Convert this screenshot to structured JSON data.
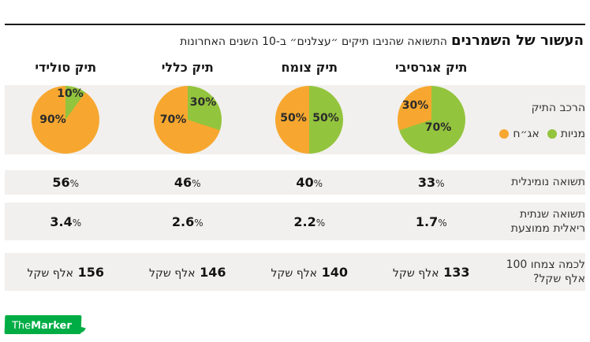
{
  "title": {
    "bold": "העשור של השמרנים",
    "rest": "התשואה שהניבו תיקים ״עצלנים״ ב-10 השנים האחרונות"
  },
  "legend": {
    "row_label": "הרכב התיק",
    "stocks": {
      "label": "מניות",
      "color": "#93C43D"
    },
    "bonds": {
      "label": "אג״ח",
      "color": "#F7A72F"
    }
  },
  "units": {
    "percent": "%",
    "thousand_shekel": "אלף שקל"
  },
  "rows": {
    "nominal": {
      "label": "תשואה נומינלית"
    },
    "real": {
      "label_line1": "תשואה שנתית",
      "label_line2": "ריאלית ממוצעת"
    },
    "grown": {
      "label_line1": "לכמה צמחו 100",
      "label_line2": "אלף שקל?"
    }
  },
  "columns": [
    {
      "header": "תיק אגרסיבי",
      "pie": {
        "stocks_pct": 70,
        "bonds_pct": 30,
        "stocks_label": "70%",
        "bonds_label": "30%"
      },
      "nominal": "33",
      "real": "1.7",
      "grown": "133"
    },
    {
      "header": "תיק צומח",
      "pie": {
        "stocks_pct": 50,
        "bonds_pct": 50,
        "stocks_label": "50%",
        "bonds_label": "50%"
      },
      "nominal": "40",
      "real": "2.2",
      "grown": "140"
    },
    {
      "header": "תיק כללי",
      "pie": {
        "stocks_pct": 30,
        "bonds_pct": 70,
        "stocks_label": "30%",
        "bonds_label": "70%"
      },
      "nominal": "46",
      "real": "2.6",
      "grown": "146"
    },
    {
      "header": "תיק סולידי",
      "pie": {
        "stocks_pct": 10,
        "bonds_pct": 90,
        "stocks_label": "10%",
        "bonds_label": "90%"
      },
      "nominal": "56",
      "real": "3.4",
      "grown": "156"
    }
  ],
  "logo": {
    "the": "The",
    "marker": "Marker",
    "color": "#00AD45"
  },
  "chart_data": [
    {
      "type": "pie",
      "title": "תיק אגרסיבי",
      "labels": [
        "מניות",
        "אג״ח"
      ],
      "values": [
        70,
        30
      ],
      "colors": [
        "#93C43D",
        "#F7A72F"
      ],
      "legend_position": "right"
    },
    {
      "type": "pie",
      "title": "תיק צומח",
      "labels": [
        "מניות",
        "אג״ח"
      ],
      "values": [
        50,
        50
      ],
      "colors": [
        "#93C43D",
        "#F7A72F"
      ],
      "legend_position": "right"
    },
    {
      "type": "pie",
      "title": "תיק כללי",
      "labels": [
        "מניות",
        "אג״ח"
      ],
      "values": [
        30,
        70
      ],
      "colors": [
        "#93C43D",
        "#F7A72F"
      ],
      "legend_position": "right"
    },
    {
      "type": "pie",
      "title": "תיק סולידי",
      "labels": [
        "מניות",
        "אג״ח"
      ],
      "values": [
        10,
        90
      ],
      "colors": [
        "#93C43D",
        "#F7A72F"
      ],
      "legend_position": "right"
    },
    {
      "type": "table",
      "title": "העשור של השמרנים — התשואה שהניבו תיקים ״עצלנים״ ב-10 השנים האחרונות",
      "columns": [
        "תיק אגרסיבי",
        "תיק צומח",
        "תיק כללי",
        "תיק סולידי"
      ],
      "rows": [
        {
          "label": "תשואה נומינלית",
          "values": [
            "33%",
            "40%",
            "46%",
            "56%"
          ]
        },
        {
          "label": "תשואה שנתית ריאלית ממוצעת",
          "values": [
            "1.7%",
            "2.2%",
            "2.6%",
            "3.4%"
          ]
        },
        {
          "label": "לכמה צמחו 100 אלף שקל?",
          "values": [
            "133 אלף שקל",
            "140 אלף שקל",
            "146 אלף שקל",
            "156 אלף שקל"
          ]
        }
      ]
    }
  ]
}
